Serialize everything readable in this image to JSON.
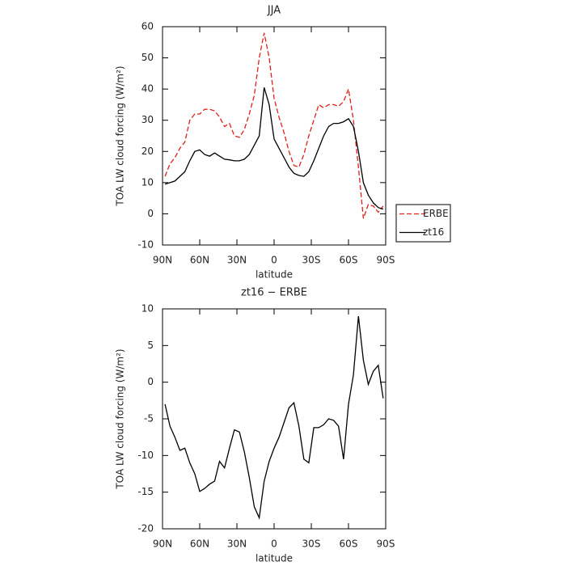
{
  "chart_data": [
    {
      "type": "line",
      "title": "JJA",
      "xlabel": "latitude",
      "ylabel": "TOA LW cloud forcing (W/m²)",
      "x": [
        88,
        84,
        80,
        76,
        72,
        68,
        64,
        60,
        56,
        52,
        48,
        44,
        40,
        36,
        32,
        28,
        24,
        20,
        16,
        12,
        8,
        4,
        0,
        -4,
        -8,
        -12,
        -16,
        -20,
        -24,
        -28,
        -32,
        -36,
        -40,
        -44,
        -48,
        -52,
        -56,
        -60,
        -64,
        -68,
        -72,
        -76,
        -80,
        -84,
        -88
      ],
      "series": [
        {
          "name": "ERBE",
          "color": "#e0201b",
          "dash": true,
          "values": [
            12,
            16,
            18,
            21,
            23,
            30,
            32,
            32,
            33.5,
            33.5,
            33,
            31,
            28,
            29,
            25,
            24.5,
            27,
            32,
            38,
            50,
            58,
            50,
            37,
            31,
            26,
            20,
            15.5,
            15,
            19,
            25,
            30,
            35,
            34,
            35,
            35,
            34.5,
            36,
            40,
            30,
            15,
            -1.5,
            3,
            2.5,
            0.5,
            2.5
          ]
        },
        {
          "name": "zt16",
          "color": "#000000",
          "dash": false,
          "values": [
            9.5,
            10,
            10.5,
            12,
            13.5,
            17,
            20,
            20.5,
            19,
            18.5,
            19.5,
            18.5,
            17.5,
            17.3,
            17,
            17,
            17.5,
            19,
            22,
            25,
            40.5,
            35,
            24,
            21,
            18,
            15,
            13,
            12.3,
            12,
            13.5,
            17,
            21,
            25,
            28,
            29,
            29,
            29.5,
            30.5,
            28,
            20,
            10,
            6,
            3.5,
            2,
            1.5
          ]
        }
      ],
      "xlim": [
        90,
        -90
      ],
      "xticks": [
        {
          "value": 90,
          "label": "90N"
        },
        {
          "value": 60,
          "label": "60N"
        },
        {
          "value": 30,
          "label": "30N"
        },
        0,
        {
          "value": -30,
          "label": "30S"
        },
        {
          "value": -60,
          "label": "60S"
        },
        {
          "value": -90,
          "label": "90S"
        }
      ],
      "ylim": [
        -10,
        60
      ],
      "yticks": [
        -10,
        0,
        10,
        20,
        30,
        40,
        50,
        60
      ],
      "legend": "right"
    },
    {
      "type": "line",
      "title": "zt16 − ERBE",
      "xlabel": "latitude",
      "ylabel": "TOA LW cloud forcing (W/m²)",
      "x": [
        88,
        84,
        80,
        76,
        72,
        68,
        64,
        60,
        56,
        52,
        48,
        44,
        40,
        36,
        32,
        28,
        24,
        20,
        16,
        12,
        8,
        4,
        0,
        -4,
        -8,
        -12,
        -16,
        -20,
        -24,
        -28,
        -32,
        -36,
        -40,
        -44,
        -48,
        -52,
        -56,
        -60,
        -64,
        -68,
        -72,
        -76,
        -80,
        -84,
        -88
      ],
      "series": [
        {
          "color": "#000000",
          "dash": false,
          "values": [
            -3,
            -6,
            -7.5,
            -9.3,
            -9,
            -11,
            -12.5,
            -14.9,
            -14.5,
            -13.9,
            -13.5,
            -10.8,
            -11.7,
            -9,
            -6.5,
            -6.8,
            -9.5,
            -13,
            -17,
            -18.5,
            -13.5,
            -10.8,
            -9,
            -7.5,
            -5.5,
            -3.5,
            -2.8,
            -6,
            -10.5,
            -11,
            -6.2,
            -6.2,
            -5.8,
            -5,
            -5.2,
            -6,
            -10.5,
            -3,
            1,
            9,
            3,
            -0.3,
            1.5,
            2.3,
            -2.2
          ]
        }
      ],
      "xlim": [
        90,
        -90
      ],
      "xticks": [
        {
          "value": 90,
          "label": "90N"
        },
        {
          "value": 60,
          "label": "60N"
        },
        {
          "value": 30,
          "label": "30N"
        },
        0,
        {
          "value": -30,
          "label": "30S"
        },
        {
          "value": -60,
          "label": "60S"
        },
        {
          "value": -90,
          "label": "90S"
        }
      ],
      "ylim": [
        -20,
        10
      ],
      "yticks": [
        -20,
        -15,
        -10,
        -5,
        0,
        5,
        10
      ]
    }
  ]
}
